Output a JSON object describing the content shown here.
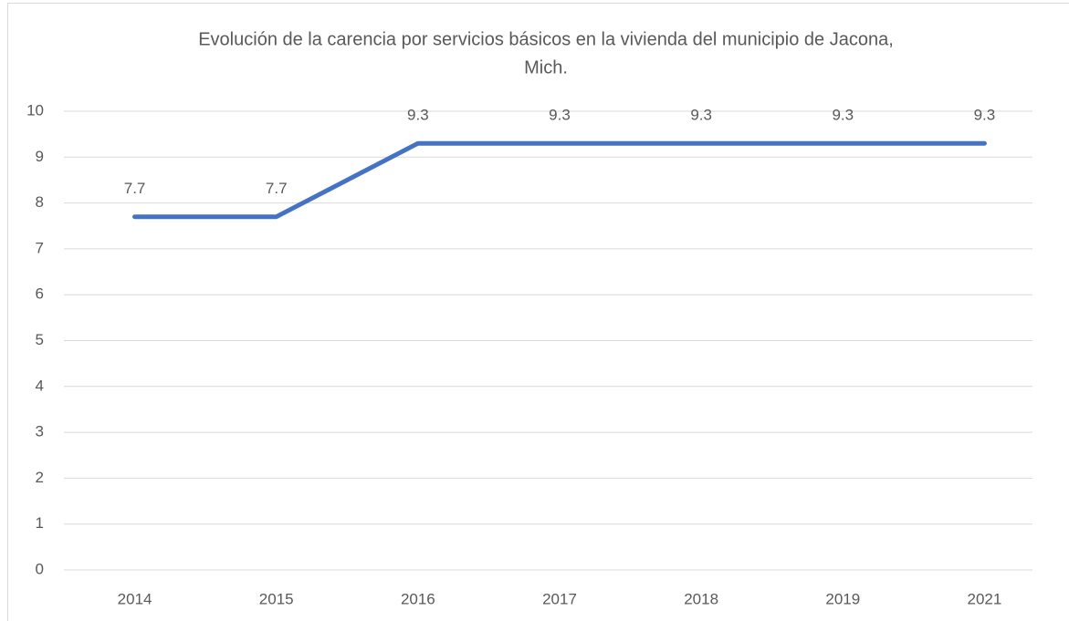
{
  "chart_data": {
    "type": "line",
    "title": [
      "Evolución de la carencia por servicios básicos en la vivienda del municipio de Jacona,",
      "Mich."
    ],
    "categories": [
      "2014",
      "2015",
      "2016",
      "2017",
      "2018",
      "2019",
      "2021"
    ],
    "series": [
      {
        "color": "#4472c4",
        "values": [
          7.7,
          7.7,
          9.3,
          9.3,
          9.3,
          9.3,
          9.3
        ]
      }
    ],
    "ylim": [
      0,
      10
    ],
    "yticks": [
      0,
      1,
      2,
      3,
      4,
      5,
      6,
      7,
      8,
      9,
      10
    ],
    "grid": true,
    "data_labels": true
  }
}
